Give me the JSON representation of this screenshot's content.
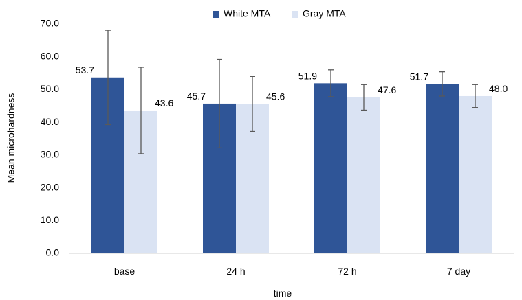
{
  "chart_data": {
    "type": "bar",
    "categories": [
      "base",
      "24 h",
      "72 h",
      "7 day"
    ],
    "series": [
      {
        "name": "White MTA",
        "color": "#2F5597",
        "values": [
          53.7,
          45.7,
          51.9,
          51.7
        ],
        "value_labels": [
          "53.7",
          "45.7",
          "51.9",
          "51.7"
        ],
        "error_low": [
          39.3,
          32.2,
          47.8,
          48.0
        ],
        "error_high": [
          68.1,
          59.2,
          56.0,
          55.4
        ]
      },
      {
        "name": "Gray MTA",
        "color": "#DAE3F3",
        "values": [
          43.6,
          45.6,
          47.6,
          48.0
        ],
        "value_labels": [
          "43.6",
          "45.6",
          "47.6",
          "48.0"
        ],
        "error_low": [
          30.4,
          37.2,
          43.7,
          44.5
        ],
        "error_high": [
          56.8,
          54.0,
          51.5,
          51.5
        ]
      }
    ],
    "xlabel": "time",
    "ylabel": "Mean microhardness",
    "ylim": [
      0,
      70
    ],
    "yticks": [
      0,
      10,
      20,
      30,
      40,
      50,
      60,
      70
    ],
    "ytick_labels": [
      "0.0",
      "10.0",
      "20.0",
      "30.0",
      "40.0",
      "50.0",
      "60.0",
      "70.0"
    ],
    "grid": false,
    "legend_position": "top"
  }
}
